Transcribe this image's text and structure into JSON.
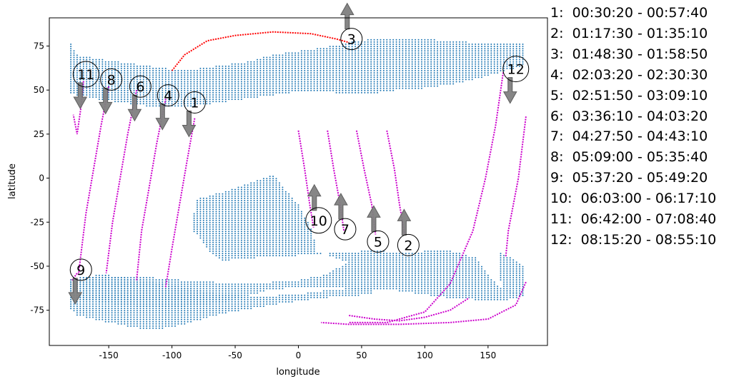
{
  "chart_data": {
    "type": "scatter",
    "title": "",
    "xlabel": "longitude",
    "ylabel": "latitude",
    "xlim": [
      -197,
      197
    ],
    "ylim": [
      -95,
      91
    ],
    "xticks": [
      -150,
      -100,
      -50,
      0,
      50,
      100,
      150
    ],
    "yticks": [
      -75,
      -50,
      -25,
      0,
      25,
      50,
      75
    ],
    "grid": false,
    "legend_position": "right, outside plot",
    "colors": {
      "ground_points": "#1f77b4",
      "passes": "#cc00cc",
      "highlight_pass": "#ff0000",
      "arrow": "#808080"
    },
    "ground_regions": [
      {
        "name": "northern-band",
        "polygon": [
          [
            -180,
            77
          ],
          [
            -175,
            70
          ],
          [
            -160,
            68
          ],
          [
            -140,
            66
          ],
          [
            -120,
            64
          ],
          [
            -100,
            62
          ],
          [
            -80,
            62
          ],
          [
            -60,
            64
          ],
          [
            -40,
            66
          ],
          [
            -20,
            70
          ],
          [
            0,
            72
          ],
          [
            20,
            74
          ],
          [
            40,
            77
          ],
          [
            60,
            79
          ],
          [
            80,
            79
          ],
          [
            100,
            79
          ],
          [
            120,
            78
          ],
          [
            140,
            77
          ],
          [
            160,
            77
          ],
          [
            180,
            77
          ],
          [
            180,
            64
          ],
          [
            160,
            60
          ],
          [
            140,
            56
          ],
          [
            120,
            53
          ],
          [
            100,
            51
          ],
          [
            80,
            50
          ],
          [
            60,
            48
          ],
          [
            40,
            48
          ],
          [
            20,
            49
          ],
          [
            0,
            49
          ],
          [
            -20,
            47
          ],
          [
            -40,
            45
          ],
          [
            -60,
            43
          ],
          [
            -80,
            41
          ],
          [
            -100,
            40
          ],
          [
            -120,
            41
          ],
          [
            -140,
            43
          ],
          [
            -160,
            45
          ],
          [
            -180,
            48
          ]
        ]
      },
      {
        "name": "southern-region",
        "polygon": [
          [
            -20,
            2
          ],
          [
            -60,
            -8
          ],
          [
            -80,
            -12
          ],
          [
            -85,
            -28
          ],
          [
            -70,
            -42
          ],
          [
            -60,
            -47
          ],
          [
            -30,
            -45
          ],
          [
            0,
            -44
          ],
          [
            40,
            -42
          ],
          [
            60,
            -41
          ],
          [
            80,
            -42
          ],
          [
            120,
            -41
          ],
          [
            140,
            -45
          ],
          [
            150,
            -55
          ],
          [
            160,
            -62
          ],
          [
            180,
            -67
          ],
          [
            160,
            -70
          ],
          [
            120,
            -68
          ],
          [
            80,
            -64
          ],
          [
            20,
            -62
          ],
          [
            -20,
            -63
          ],
          [
            -60,
            -71
          ],
          [
            -110,
            -74
          ],
          [
            -140,
            -72
          ],
          [
            -170,
            -69
          ],
          [
            -180,
            -65
          ],
          [
            -180,
            -58
          ],
          [
            -160,
            -55
          ],
          [
            -120,
            -56
          ],
          [
            -90,
            -58
          ],
          [
            -40,
            -60
          ],
          [
            0,
            -58
          ],
          [
            20,
            -55
          ],
          [
            40,
            -48
          ],
          [
            15,
            -42
          ],
          [
            10,
            -28
          ],
          [
            0,
            -15
          ]
        ]
      },
      {
        "name": "antarctic-strip",
        "polygon": [
          [
            -180,
            -57
          ],
          [
            -150,
            -55
          ],
          [
            -120,
            -58
          ],
          [
            -90,
            -62
          ],
          [
            -60,
            -66
          ],
          [
            -30,
            -67
          ],
          [
            0,
            -66
          ],
          [
            30,
            -63
          ],
          [
            60,
            -62
          ],
          [
            60,
            -66
          ],
          [
            20,
            -68
          ],
          [
            -20,
            -72
          ],
          [
            -60,
            -77
          ],
          [
            -100,
            -85
          ],
          [
            -120,
            -86
          ],
          [
            -150,
            -82
          ],
          [
            -175,
            -78
          ],
          [
            -180,
            -74
          ]
        ]
      },
      {
        "name": "south-east-patch",
        "polygon": [
          [
            160,
            -42
          ],
          [
            175,
            -48
          ],
          [
            180,
            -52
          ],
          [
            180,
            -67
          ],
          [
            165,
            -65
          ],
          [
            160,
            -58
          ]
        ]
      }
    ],
    "series": [
      {
        "id": "1",
        "time": "00:30:20 - 00:57:40",
        "points": [
          [
            -82,
            34
          ],
          [
            -88,
            10
          ],
          [
            -94,
            -15
          ],
          [
            -100,
            -40
          ],
          [
            -105,
            -62
          ]
        ],
        "arrow": "down",
        "marker": [
          -82,
          43
        ]
      },
      {
        "id": "2",
        "time": "01:17:30 - 01:35:10",
        "points": [
          [
            70,
            27
          ],
          [
            76,
            5
          ],
          [
            80,
            -15
          ],
          [
            84,
            -32
          ]
        ],
        "arrow": "up",
        "marker": [
          87,
          -38
        ]
      },
      {
        "id": "3",
        "time": "01:48:30 - 01:58:50",
        "points": [
          [
            -100,
            61
          ],
          [
            -90,
            70
          ],
          [
            -72,
            78
          ],
          [
            -50,
            81
          ],
          [
            -20,
            83
          ],
          [
            10,
            82
          ],
          [
            30,
            79
          ],
          [
            40,
            77
          ]
        ],
        "arrow": "up",
        "marker": [
          42,
          79
        ],
        "highlight": true
      },
      {
        "id": "4",
        "time": "02:03:20 - 02:30:30",
        "points": [
          [
            -105,
            45
          ],
          [
            -112,
            20
          ],
          [
            -118,
            -5
          ],
          [
            -124,
            -30
          ],
          [
            -128,
            -58
          ]
        ],
        "arrow": "down",
        "marker": [
          -103,
          47
        ]
      },
      {
        "id": "5",
        "time": "02:51:50 - 03:09:10",
        "points": [
          [
            46,
            27
          ],
          [
            52,
            5
          ],
          [
            58,
            -15
          ],
          [
            61,
            -32
          ]
        ],
        "arrow": "up",
        "marker": [
          63,
          -36
        ]
      },
      {
        "id": "6",
        "time": "03:36:10 - 04:03:20",
        "points": [
          [
            -128,
            50
          ],
          [
            -135,
            25
          ],
          [
            -141,
            0
          ],
          [
            -147,
            -25
          ],
          [
            -152,
            -54
          ]
        ],
        "arrow": "down",
        "marker": [
          -125,
          52
        ]
      },
      {
        "id": "7",
        "time": "04:27:50 - 04:43:10",
        "points": [
          [
            23,
            27
          ],
          [
            28,
            5
          ],
          [
            33,
            -15
          ],
          [
            36,
            -30
          ]
        ],
        "arrow": "up",
        "marker": [
          37,
          -29
        ]
      },
      {
        "id": "8",
        "time": "05:09:00 - 05:35:40",
        "points": [
          [
            -150,
            52
          ],
          [
            -156,
            30
          ],
          [
            -162,
            5
          ],
          [
            -168,
            -20
          ],
          [
            -174,
            -55
          ]
        ],
        "arrow": "down",
        "marker": [
          -148,
          56
        ]
      },
      {
        "id": "9",
        "time": "05:37:20 - 05:49:20",
        "points": [
          [
            -175,
            -54
          ],
          [
            -179,
            -58
          ]
        ],
        "arrow": "down",
        "marker": [
          -172,
          -52
        ]
      },
      {
        "id": "10",
        "time": "06:03:00 - 06:17:10",
        "points": [
          [
            0,
            27
          ],
          [
            5,
            5
          ],
          [
            9,
            -15
          ],
          [
            12,
            -28
          ]
        ],
        "arrow": "up",
        "marker": [
          16,
          -24
        ]
      },
      {
        "id": "11",
        "time": "06:42:00 - 07:08:40",
        "points": [
          [
            -170,
            55
          ],
          [
            -172,
            40
          ],
          [
            -175,
            25
          ],
          [
            -178,
            36
          ]
        ],
        "arrow": "down",
        "marker": [
          -168,
          59
        ]
      },
      {
        "id": "12",
        "time": "08:15:20 - 08:55:10",
        "points": [
          [
            162,
            60
          ],
          [
            156,
            30
          ],
          [
            148,
            0
          ],
          [
            138,
            -30
          ],
          [
            120,
            -60
          ],
          [
            100,
            -76
          ],
          [
            70,
            -82
          ],
          [
            40,
            -82
          ]
        ],
        "arrow": "down",
        "marker": [
          172,
          62
        ]
      },
      {
        "id": "12b",
        "time": "",
        "points": [
          [
            180,
            35
          ],
          [
            174,
            0
          ],
          [
            166,
            -30
          ],
          [
            164,
            -45
          ]
        ],
        "arrow": "none"
      },
      {
        "id": "12c",
        "time": "",
        "points": [
          [
            180,
            -59
          ],
          [
            172,
            -72
          ],
          [
            150,
            -80
          ],
          [
            120,
            -82
          ],
          [
            80,
            -83
          ],
          [
            40,
            -83
          ],
          [
            18,
            -82
          ]
        ],
        "arrow": "none"
      },
      {
        "id": "12d",
        "time": "",
        "points": [
          [
            40,
            -78
          ],
          [
            60,
            -80
          ],
          [
            80,
            -81
          ],
          [
            100,
            -79
          ],
          [
            120,
            -75
          ],
          [
            135,
            -68
          ]
        ],
        "arrow": "none"
      }
    ]
  },
  "legend": [
    "1:  00:30:20 - 00:57:40",
    "2:  01:17:30 - 01:35:10",
    "3:  01:48:30 - 01:58:50",
    "4:  02:03:20 - 02:30:30",
    "5:  02:51:50 - 03:09:10",
    "6:  03:36:10 - 04:03:20",
    "7:  04:27:50 - 04:43:10",
    "8:  05:09:00 - 05:35:40",
    "9:  05:37:20 - 05:49:20",
    "10:  06:03:00 - 06:17:10",
    "11:  06:42:00 - 07:08:40",
    "12:  08:15:20 - 08:55:10"
  ]
}
